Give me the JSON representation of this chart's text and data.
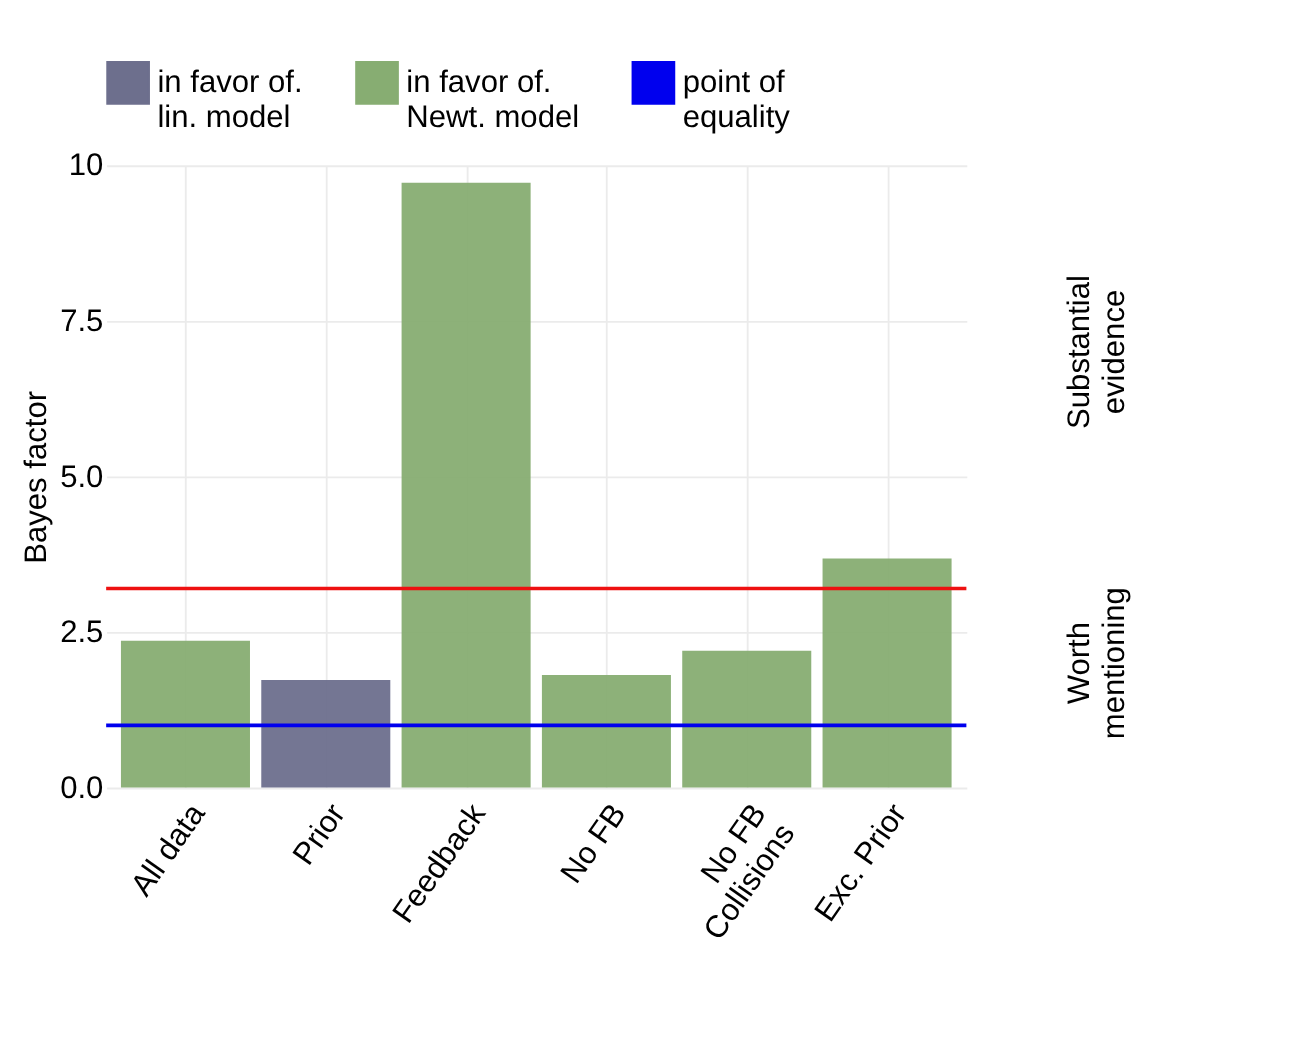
{
  "chart_data": {
    "type": "bar",
    "ylabel": "Bayes factor",
    "categories": [
      "All data",
      "Prior",
      "Feedback",
      "No FB",
      "No FB\nCollisions",
      "Exc. Prior"
    ],
    "series": [
      {
        "name": "in favor of.\nlin. model",
        "color": "#6d6f8d",
        "values": [
          null,
          1.73,
          null,
          null,
          null,
          null
        ]
      },
      {
        "name": "in favor of.\nNewt. model",
        "color": "#87ad72",
        "values": [
          2.36,
          null,
          9.72,
          1.81,
          2.2,
          3.68
        ]
      }
    ],
    "ylim": [
      0,
      10
    ],
    "yticks": [
      {
        "value": 0,
        "label": "0.0"
      },
      {
        "value": 2.5,
        "label": "2.5"
      },
      {
        "value": 5,
        "label": "5.0"
      },
      {
        "value": 7.5,
        "label": "7.5"
      },
      10
    ],
    "ref_lines": [
      {
        "axis": "y",
        "value": 1,
        "label": "point of\nequality",
        "color": "#0000ee"
      },
      {
        "axis": "y",
        "value": 3.2,
        "color": "#ee1111"
      }
    ],
    "annotations": [
      "Substantial\nevidence",
      "Worth\nmentioning"
    ],
    "grid": true,
    "legend": "top"
  }
}
